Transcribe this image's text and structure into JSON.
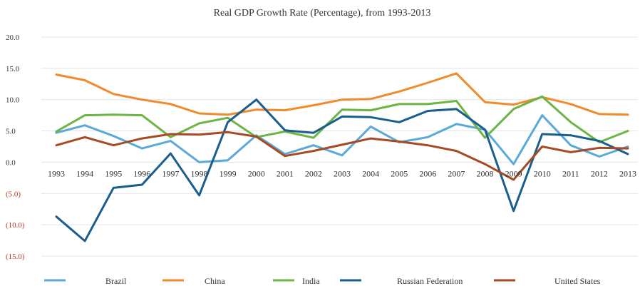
{
  "chart_data": {
    "type": "line",
    "title": "Real GDP Growth Rate (Percentage), from 1993-2013",
    "xlabel": "",
    "ylabel": "",
    "x": [
      "1993",
      "1994",
      "1995",
      "1996",
      "1997",
      "1998",
      "1999",
      "2000",
      "2001",
      "2002",
      "2003",
      "2004",
      "2005",
      "2006",
      "2007",
      "2008",
      "2009",
      "2010",
      "2011",
      "2012",
      "2013"
    ],
    "ylim": [
      -15,
      20
    ],
    "yticks": [
      20,
      15,
      10,
      5,
      0,
      -5,
      -10,
      -15
    ],
    "ytick_labels": [
      "20.0",
      "15.0",
      "10.0",
      "5.0",
      "0.0",
      "(5.0)",
      "(10.0)",
      "(15.0)"
    ],
    "grid": true,
    "legend_position": "bottom",
    "negative_tick_color": "#c0392b",
    "tick_color": "#333333",
    "series": [
      {
        "name": "Brazil",
        "color": "#5aa9d6",
        "values": [
          4.7,
          5.9,
          4.2,
          2.2,
          3.4,
          0.0,
          0.3,
          4.3,
          1.3,
          2.7,
          1.1,
          5.7,
          3.2,
          4.0,
          6.1,
          5.2,
          -0.3,
          7.5,
          2.7,
          0.9,
          2.5
        ]
      },
      {
        "name": "China",
        "color": "#f08a2c",
        "values": [
          14.0,
          13.1,
          10.9,
          10.0,
          9.3,
          7.8,
          7.6,
          8.4,
          8.3,
          9.1,
          10.0,
          10.1,
          11.3,
          12.7,
          14.2,
          9.6,
          9.2,
          10.4,
          9.3,
          7.7,
          7.6
        ]
      },
      {
        "name": "India",
        "color": "#6cb545",
        "values": [
          4.9,
          7.5,
          7.6,
          7.5,
          4.0,
          6.2,
          7.1,
          4.0,
          4.9,
          3.9,
          8.4,
          8.3,
          9.3,
          9.3,
          9.8,
          3.9,
          8.5,
          10.5,
          6.4,
          3.2,
          5.0
        ]
      },
      {
        "name": "Russian Federation",
        "color": "#1a5e8e",
        "values": [
          -8.7,
          -12.6,
          -4.1,
          -3.6,
          1.4,
          -5.3,
          6.4,
          10.0,
          5.1,
          4.7,
          7.3,
          7.2,
          6.4,
          8.2,
          8.5,
          5.2,
          -7.8,
          4.5,
          4.3,
          3.4,
          1.3
        ]
      },
      {
        "name": "United States",
        "color": "#a64a25",
        "values": [
          2.7,
          4.0,
          2.7,
          3.8,
          4.5,
          4.4,
          4.8,
          4.1,
          1.0,
          1.8,
          2.8,
          3.8,
          3.3,
          2.7,
          1.8,
          -0.3,
          -2.8,
          2.5,
          1.6,
          2.3,
          2.2
        ]
      }
    ]
  }
}
